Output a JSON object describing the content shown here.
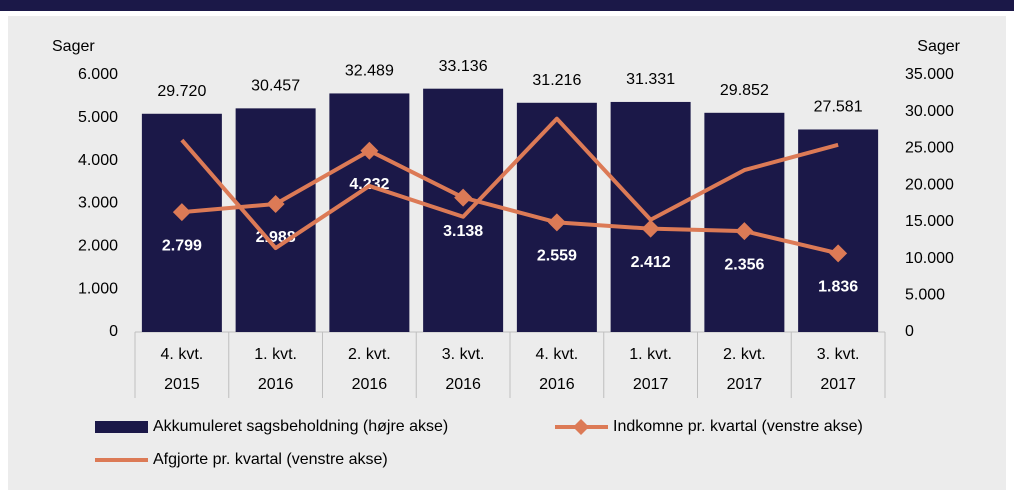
{
  "chart_data": {
    "type": "bar-line",
    "ylabel": "Sager",
    "y2label": "Sager",
    "categories": [
      [
        "4. kvt.",
        "2015"
      ],
      [
        "1. kvt.",
        "2016"
      ],
      [
        "2. kvt.",
        "2016"
      ],
      [
        "3. kvt.",
        "2016"
      ],
      [
        "4. kvt.",
        "2016"
      ],
      [
        "1. kvt.",
        "2017"
      ],
      [
        "2. kvt.",
        "2017"
      ],
      [
        "3. kvt.",
        "2017"
      ]
    ],
    "ylim": [
      0,
      6000
    ],
    "yticks": [
      0,
      {
        "value": 1000,
        "label": "1.000"
      },
      {
        "value": 2000,
        "label": "2.000"
      },
      {
        "value": 3000,
        "label": "3.000"
      },
      {
        "value": 4000,
        "label": "4.000"
      },
      {
        "value": 5000,
        "label": "5.000"
      },
      {
        "value": 6000,
        "label": "6.000"
      }
    ],
    "y2lim": [
      0,
      35000
    ],
    "y2ticks": [
      0,
      {
        "value": 5000,
        "label": "5.000"
      },
      {
        "value": 10000,
        "label": "10.000"
      },
      {
        "value": 15000,
        "label": "15.000"
      },
      {
        "value": 20000,
        "label": "20.000"
      },
      {
        "value": 25000,
        "label": "25.000"
      },
      {
        "value": 30000,
        "label": "30.000"
      },
      {
        "value": 35000,
        "label": "35.000"
      }
    ],
    "series": [
      {
        "name": "Akkumuleret sagsbeholdning (højre akse)",
        "type": "bar",
        "axis": "y2",
        "color": "#1b1848",
        "values": [
          29720,
          30457,
          32489,
          33136,
          31216,
          31331,
          29852,
          27581
        ],
        "value_labels": [
          "29.720",
          "30.457",
          "32.489",
          "33.136",
          "31.216",
          "31.331",
          "29.852",
          "27.581"
        ]
      },
      {
        "name": "Indkomne pr. kvartal (venstre akse)",
        "type": "line",
        "marker": "diamond",
        "color": "#dc7a56",
        "values": [
          2799,
          2988,
          4232,
          3138,
          2559,
          2412,
          2356,
          1836
        ],
        "value_labels": [
          "2.799",
          "2.988",
          "4.232",
          "3.138",
          "2.559",
          "2.412",
          "2.356",
          "1.836"
        ]
      },
      {
        "name": "Afgjorte pr. kvartal (venstre akse)",
        "type": "line",
        "color": "#dc7a56",
        "values": [
          4480,
          1960,
          3410,
          2690,
          4980,
          2620,
          3780,
          4370
        ]
      }
    ]
  }
}
